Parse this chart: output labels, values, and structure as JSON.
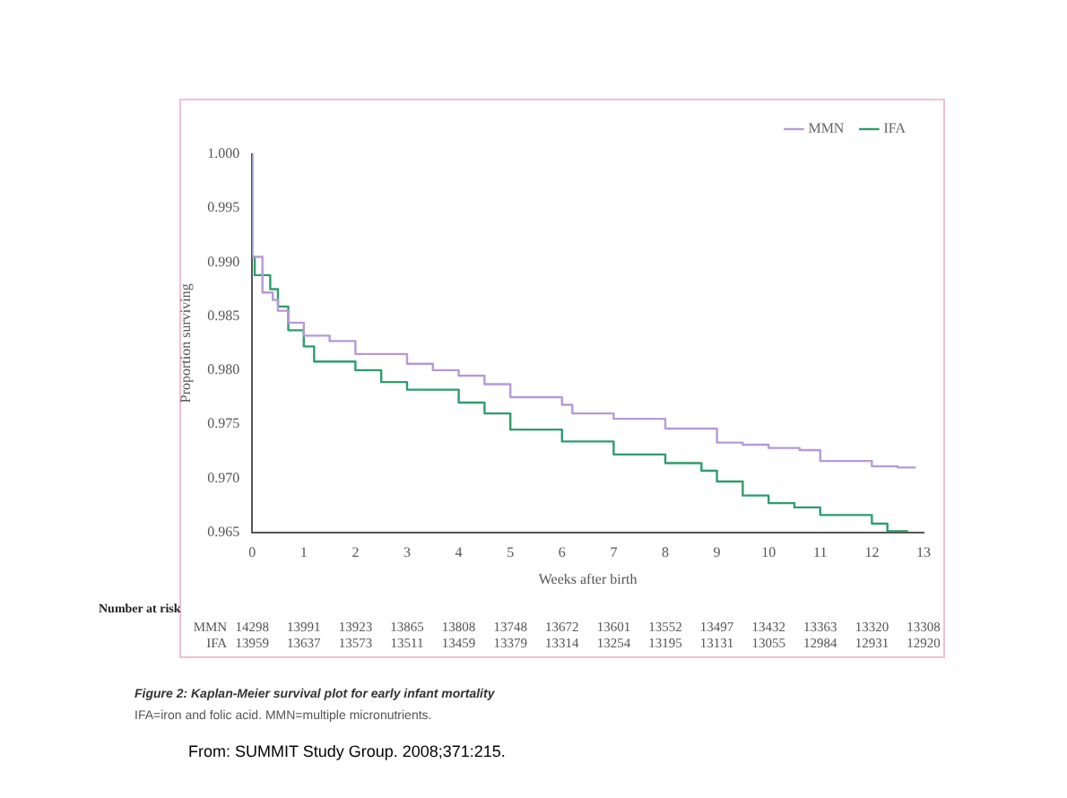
{
  "chart_data": {
    "type": "step",
    "title": "Figure 2: Kaplan-Meier survival plot for early infant mortality",
    "subtitle": "IFA=iron and folic acid. MMN=multiple micronutrients.",
    "xlabel": "Weeks after birth",
    "ylabel": "Proportion surviving",
    "annotations": [
      "Number at risk",
      "MMN 14298 13991 13923 13865 13808 13748 13672 13601 13552 13497 13432 13363 13320 13308",
      "IFA 13959 13637 13573 13511 13459 13379 13314 13254 13195 13131 13055 12984 12931 12920",
      "From:  SUMMIT Study Group.  2008;371:215."
    ],
    "series": [
      {
        "name": "MMN",
        "color": "#b59ad8",
        "x": [
          0,
          0,
          0.2,
          0.4,
          0.5,
          0.7,
          1,
          1.5,
          2,
          3,
          3.5,
          4,
          4.5,
          5,
          6,
          6.2,
          7,
          8,
          9,
          9.5,
          10,
          10.6,
          11,
          12,
          12.5,
          12.85
        ],
        "values": [
          1.0,
          0.9917,
          0.9905,
          0.9872,
          0.9865,
          0.9855,
          0.9844,
          0.9832,
          0.9827,
          0.9815,
          0.9806,
          0.98,
          0.9795,
          0.9787,
          0.9775,
          0.9768,
          0.976,
          0.9755,
          0.9746,
          0.9733,
          0.9731,
          0.9728,
          0.9726,
          0.9716,
          0.9711,
          0.971
        ]
      },
      {
        "name": "IFA",
        "color": "#2e9c6e",
        "x": [
          0,
          0.05,
          0.35,
          0.5,
          0.7,
          1,
          1.2,
          2,
          2.5,
          3,
          4,
          4.5,
          5,
          6,
          7,
          8,
          8.7,
          9,
          9.5,
          10,
          10.5,
          11,
          12,
          12.3,
          12.7
        ],
        "values": [
          1.0,
          0.9905,
          0.9888,
          0.9875,
          0.9859,
          0.9837,
          0.9822,
          0.9808,
          0.98,
          0.9789,
          0.9782,
          0.977,
          0.976,
          0.9745,
          0.9734,
          0.9722,
          0.9714,
          0.9707,
          0.9697,
          0.9684,
          0.9677,
          0.9673,
          0.9666,
          0.9658,
          0.9651
        ]
      }
    ],
    "xlim": [
      0,
      13
    ],
    "xticks": [
      0,
      1,
      2,
      3,
      4,
      5,
      6,
      7,
      8,
      9,
      10,
      11,
      12,
      13
    ],
    "ylim": [
      0.965,
      1.0
    ],
    "yticks": [
      0.965,
      {
        "value": 0.97,
        "label": "0.970"
      },
      0.975,
      {
        "value": 0.98,
        "label": "0.980"
      },
      0.985,
      {
        "value": 0.99,
        "label": "0.990"
      },
      0.995,
      {
        "value": 1.0,
        "label": "1.000"
      }
    ],
    "grid": false,
    "legend": "top right",
    "marker": "none",
    "line_style": "solid"
  }
}
